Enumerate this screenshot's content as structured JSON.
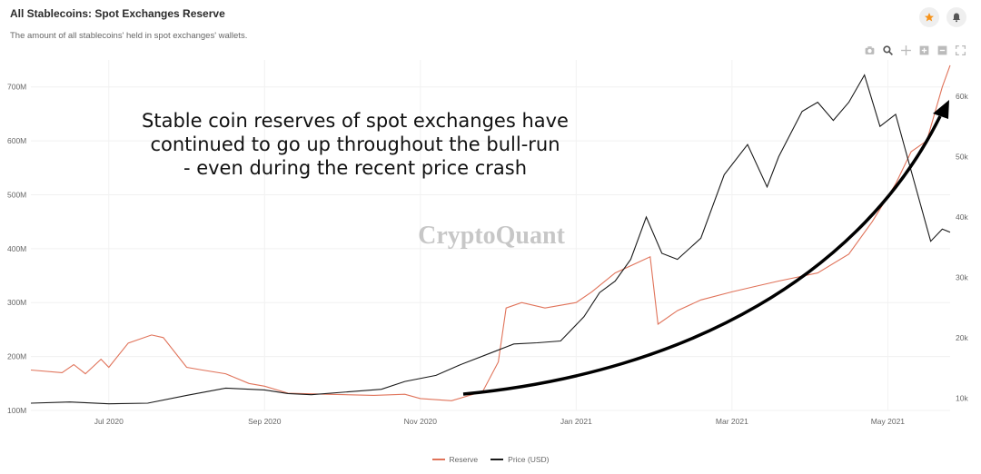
{
  "header": {
    "title": "All Stablecoins: Spot Exchanges Reserve",
    "subtitle": "The amount of all stablecoins' held in spot exchanges' wallets."
  },
  "actions": {
    "favorite_icon": "star-icon",
    "notify_icon": "bell-icon"
  },
  "toolbar": [
    {
      "name": "camera-icon"
    },
    {
      "name": "zoom-icon"
    },
    {
      "name": "pan-icon"
    },
    {
      "name": "zoom-in-icon"
    },
    {
      "name": "zoom-out-icon"
    },
    {
      "name": "autoscale-icon"
    }
  ],
  "annotation": {
    "lines": [
      "Stable coin reserves of spot exchanges have",
      "continued to go up throughout the bull-run",
      "- even during the recent price crash"
    ]
  },
  "watermark": "CryptoQuant",
  "colors": {
    "reserve": "#e0735a",
    "price": "#1a1a1a",
    "accent": "#f7931a"
  },
  "chart_data": {
    "type": "line",
    "title": "All Stablecoins: Spot Exchanges Reserve",
    "x_ticks": [
      "Jul 2020",
      "Sep 2020",
      "Nov 2020",
      "Jan 2021",
      "Mar 2021",
      "May 2021"
    ],
    "x_tick_months": [
      1,
      3,
      5,
      7,
      9,
      11
    ],
    "x_range_months": [
      0,
      11.8
    ],
    "y_left": {
      "ticks": [
        "100M",
        "200M",
        "300M",
        "400M",
        "500M",
        "600M",
        "700M"
      ],
      "range": [
        100,
        750
      ],
      "unit": "M"
    },
    "y_right": {
      "ticks": [
        "10k",
        "20k",
        "30k",
        "40k",
        "50k",
        "60k"
      ],
      "range": [
        8000,
        66000
      ]
    },
    "grid": true,
    "legend_position": "bottom-center",
    "series": [
      {
        "name": "Reserve",
        "axis": "left",
        "points": [
          [
            0,
            175
          ],
          [
            0.4,
            170
          ],
          [
            0.55,
            185
          ],
          [
            0.7,
            168
          ],
          [
            0.9,
            195
          ],
          [
            1.0,
            180
          ],
          [
            1.25,
            225
          ],
          [
            1.55,
            240
          ],
          [
            1.7,
            235
          ],
          [
            2.0,
            180
          ],
          [
            2.2,
            175
          ],
          [
            2.5,
            168
          ],
          [
            2.8,
            150
          ],
          [
            3.0,
            145
          ],
          [
            3.3,
            132
          ],
          [
            3.8,
            130
          ],
          [
            4.4,
            128
          ],
          [
            4.8,
            130
          ],
          [
            5.0,
            122
          ],
          [
            5.4,
            118
          ],
          [
            5.8,
            135
          ],
          [
            6.0,
            190
          ],
          [
            6.1,
            290
          ],
          [
            6.3,
            300
          ],
          [
            6.6,
            290
          ],
          [
            6.8,
            295
          ],
          [
            7.0,
            300
          ],
          [
            7.2,
            320
          ],
          [
            7.5,
            355
          ],
          [
            7.8,
            375
          ],
          [
            7.95,
            385
          ],
          [
            8.05,
            260
          ],
          [
            8.3,
            285
          ],
          [
            8.6,
            305
          ],
          [
            9.0,
            320
          ],
          [
            9.3,
            330
          ],
          [
            9.6,
            340
          ],
          [
            10.1,
            355
          ],
          [
            10.5,
            390
          ],
          [
            10.8,
            450
          ],
          [
            11.1,
            520
          ],
          [
            11.3,
            580
          ],
          [
            11.5,
            600
          ],
          [
            11.7,
            700
          ],
          [
            11.8,
            740
          ]
        ]
      },
      {
        "name": "Price (USD)",
        "axis": "right",
        "points": [
          [
            0,
            9200
          ],
          [
            0.5,
            9400
          ],
          [
            1.0,
            9100
          ],
          [
            1.5,
            9200
          ],
          [
            2.0,
            10500
          ],
          [
            2.5,
            11700
          ],
          [
            3.0,
            11400
          ],
          [
            3.3,
            10800
          ],
          [
            3.6,
            10600
          ],
          [
            4.0,
            11000
          ],
          [
            4.5,
            11500
          ],
          [
            4.8,
            12800
          ],
          [
            5.2,
            13800
          ],
          [
            5.5,
            15500
          ],
          [
            5.9,
            17500
          ],
          [
            6.2,
            19000
          ],
          [
            6.5,
            19200
          ],
          [
            6.8,
            19500
          ],
          [
            7.1,
            23500
          ],
          [
            7.3,
            27500
          ],
          [
            7.5,
            29400
          ],
          [
            7.7,
            33000
          ],
          [
            7.9,
            40000
          ],
          [
            8.1,
            34000
          ],
          [
            8.3,
            33000
          ],
          [
            8.6,
            36500
          ],
          [
            8.9,
            47000
          ],
          [
            9.2,
            52000
          ],
          [
            9.45,
            45000
          ],
          [
            9.6,
            50000
          ],
          [
            9.9,
            57500
          ],
          [
            10.1,
            59000
          ],
          [
            10.3,
            56000
          ],
          [
            10.5,
            59000
          ],
          [
            10.7,
            63500
          ],
          [
            10.9,
            55000
          ],
          [
            11.1,
            57000
          ],
          [
            11.25,
            50000
          ],
          [
            11.4,
            43000
          ],
          [
            11.55,
            36000
          ],
          [
            11.7,
            38000
          ],
          [
            11.8,
            37500
          ]
        ]
      }
    ]
  },
  "legend": [
    {
      "label": "Reserve",
      "series": "reserve"
    },
    {
      "label": "Price (USD)",
      "series": "price"
    }
  ]
}
